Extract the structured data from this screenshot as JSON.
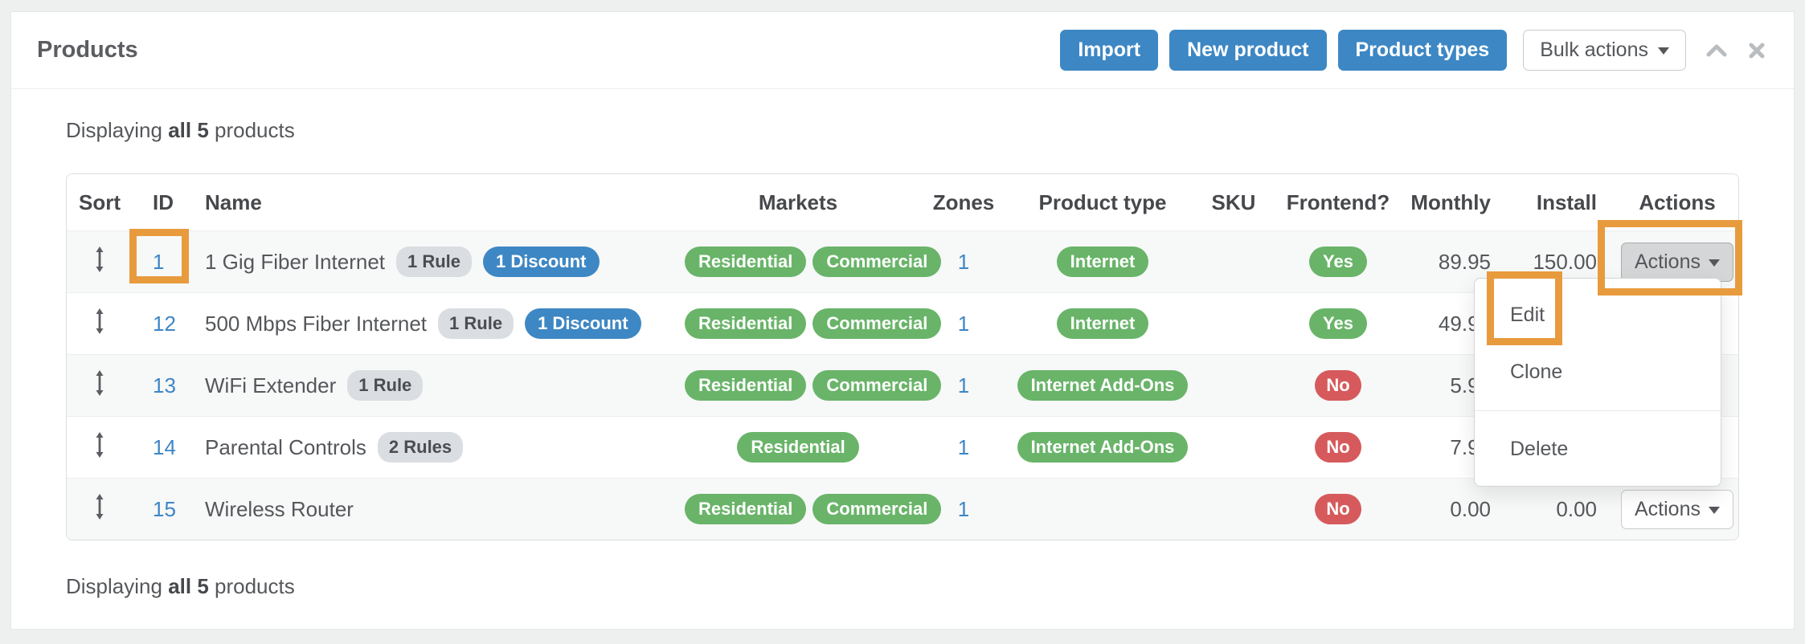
{
  "panel": {
    "title": "Products"
  },
  "toolbar": {
    "import_label": "Import",
    "new_product_label": "New product",
    "product_types_label": "Product types",
    "bulk_actions_label": "Bulk actions"
  },
  "icons": {
    "collapse": "chevron-up",
    "close": "x",
    "bulk_caret": "caret-down",
    "actions_caret": "caret-down",
    "sort_handle": "up-down-arrow"
  },
  "status": {
    "prefix": "Displaying",
    "bold": "all 5",
    "suffix": "products"
  },
  "table": {
    "headers": [
      "Sort",
      "ID",
      "Name",
      "Markets",
      "Zones",
      "Product type",
      "SKU",
      "Frontend?",
      "Monthly",
      "Install",
      "Actions"
    ],
    "rows": [
      {
        "id": "1",
        "name": "1 Gig Fiber Internet",
        "rule_badge": "1 Rule",
        "discount_badge": "1 Discount",
        "markets": [
          "Residential",
          "Commercial"
        ],
        "zones": "1",
        "product_type": "Internet",
        "sku": "",
        "frontend": "Yes",
        "monthly": "89.95",
        "install": "150.00",
        "actions_label": "Actions",
        "actions_open": true,
        "highlight_id": true
      },
      {
        "id": "12",
        "name": "500 Mbps Fiber Internet",
        "rule_badge": "1 Rule",
        "discount_badge": "1 Discount",
        "markets": [
          "Residential",
          "Commercial"
        ],
        "zones": "1",
        "product_type": "Internet",
        "sku": "",
        "frontend": "Yes",
        "monthly": "49.95",
        "install": "",
        "actions_label": "",
        "actions_open": false,
        "highlight_id": false
      },
      {
        "id": "13",
        "name": "WiFi Extender",
        "rule_badge": "1 Rule",
        "discount_badge": "",
        "markets": [
          "Residential",
          "Commercial"
        ],
        "zones": "1",
        "product_type": "Internet Add-Ons",
        "sku": "",
        "frontend": "No",
        "monthly": "5.95",
        "install": "",
        "actions_label": "",
        "actions_open": false,
        "highlight_id": false
      },
      {
        "id": "14",
        "name": "Parental Controls",
        "rule_badge": "2 Rules",
        "discount_badge": "",
        "markets": [
          "Residential"
        ],
        "zones": "1",
        "product_type": "Internet Add-Ons",
        "sku": "",
        "frontend": "No",
        "monthly": "7.95",
        "install": "",
        "actions_label": "",
        "actions_open": false,
        "highlight_id": false
      },
      {
        "id": "15",
        "name": "Wireless Router",
        "rule_badge": "",
        "discount_badge": "",
        "markets": [
          "Residential",
          "Commercial"
        ],
        "zones": "1",
        "product_type": "",
        "sku": "",
        "frontend": "No",
        "monthly": "0.00",
        "install": "0.00",
        "actions_label": "Actions",
        "actions_open": false,
        "highlight_id": false
      }
    ]
  },
  "dropdown": {
    "items": [
      "Edit",
      "Clone",
      "Delete"
    ]
  },
  "colors": {
    "primary_blue": "#3d87c4",
    "pill_green": "#69b469",
    "pill_red": "#d65a5c",
    "badge_gray": "#dadde1",
    "discount_blue": "#3d87c4",
    "link_blue": "#3e86c6",
    "highlight_orange": "#e89b3d"
  }
}
